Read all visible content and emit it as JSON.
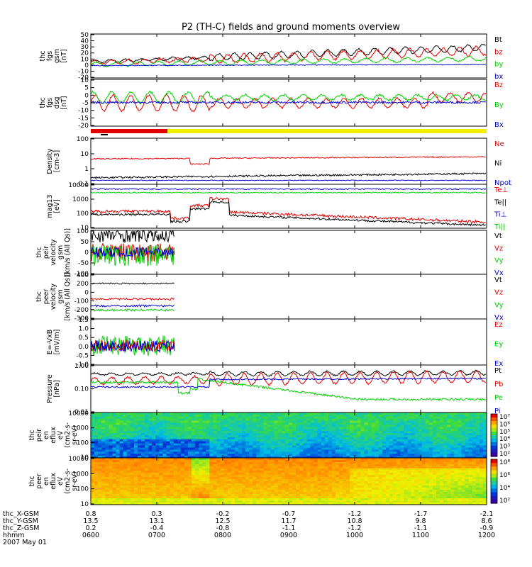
{
  "title": "P2 (TH-C) fields and ground moments overview",
  "colors": {
    "black": "#000000",
    "red": "#e00000",
    "green": "#00d000",
    "blue": "#0000d0",
    "mode_red": "#e00000",
    "mode_yellow": "#f0f000"
  },
  "chart_data": [
    {
      "type": "line",
      "ylabel": [
        "thc",
        "fgs",
        "gsm",
        "[nT]"
      ],
      "yticks": [
        "50",
        "40",
        "30",
        "20",
        "10",
        "0",
        "-10",
        "-20"
      ],
      "ylim": [
        -20,
        50
      ],
      "legend": [
        {
          "label": "Bt",
          "color": "#000000"
        },
        {
          "label": "bz",
          "color": "#e00000"
        },
        {
          "label": "by",
          "color": "#00d000"
        },
        {
          "label": "bx",
          "color": "#0000d0"
        }
      ]
    },
    {
      "type": "line",
      "ylabel": [
        "thc",
        "fgs",
        "dsg",
        "[nT]"
      ],
      "yticks": [
        "10",
        "5",
        "0",
        "-5",
        "-10",
        "-15",
        "-20"
      ],
      "ylim": [
        -20,
        15
      ],
      "legend": [
        {
          "label": "Bz",
          "color": "#e00000"
        },
        {
          "label": "By",
          "color": "#00d000"
        },
        {
          "label": "Bx",
          "color": "#0000d0"
        }
      ]
    },
    {
      "type": "line",
      "ylabel": [
        "Density",
        "[cm-3]"
      ],
      "yticks": [
        "100",
        "10",
        "1",
        "0.1"
      ],
      "scale": "log",
      "ylim": [
        0.1,
        100
      ],
      "legend": [
        {
          "label": "Ne",
          "color": "#e00000"
        },
        {
          "label": "Ni",
          "color": "#000000"
        },
        {
          "label": "Npot",
          "color": "#0000d0"
        }
      ]
    },
    {
      "type": "line",
      "ylabel": [
        "mag13",
        "[eV]"
      ],
      "yticks": [
        "10000",
        "1000",
        "100",
        "10"
      ],
      "scale": "log",
      "ylim": [
        10,
        10000
      ],
      "legend": [
        {
          "label": "Te⊥",
          "color": "#e00000"
        },
        {
          "label": "Te||",
          "color": "#000000"
        },
        {
          "label": "Ti⊥",
          "color": "#0000d0"
        },
        {
          "label": "Ti||",
          "color": "#00d000"
        }
      ]
    },
    {
      "type": "line",
      "ylabel": [
        "thc",
        "peir",
        "velocity",
        "gsm",
        "[km/s (All Qs)]"
      ],
      "yticks": [
        "100",
        "50",
        "0",
        "-50",
        "-100"
      ],
      "ylim": [
        -100,
        100
      ],
      "legend": [
        {
          "label": "Vt",
          "color": "#000000"
        },
        {
          "label": "Vz",
          "color": "#e00000"
        },
        {
          "label": "Vy",
          "color": "#00d000"
        },
        {
          "label": "Vx",
          "color": "#0000d0"
        }
      ]
    },
    {
      "type": "line",
      "ylabel": [
        "thc",
        "peer",
        "velocity",
        "gsm",
        "[km/s (All Qs)]"
      ],
      "yticks": [
        "400",
        "200",
        "0",
        "-100",
        "-200",
        "-300"
      ],
      "ylim": [
        -300,
        400
      ],
      "legend": [
        {
          "label": "Vt",
          "color": "#000000"
        },
        {
          "label": "Vz",
          "color": "#e00000"
        },
        {
          "label": "Vy",
          "color": "#00d000"
        },
        {
          "label": "Vx",
          "color": "#0000d0"
        }
      ]
    },
    {
      "type": "line",
      "ylabel": [
        "E=-VxB",
        "[mV/m]"
      ],
      "yticks": [
        "1.5",
        "1.0",
        "0.5",
        "0.0",
        "-0.5",
        "-1.0"
      ],
      "ylim": [
        -1.0,
        1.5
      ],
      "legend": [
        {
          "label": "Ez",
          "color": "#e00000"
        },
        {
          "label": "Ey",
          "color": "#00d000"
        },
        {
          "label": "Ex",
          "color": "#0000d0"
        }
      ]
    },
    {
      "type": "line",
      "ylabel": [
        "Pressure",
        "[nPa]"
      ],
      "yticks": [
        "1.00",
        "0.10",
        "0.01"
      ],
      "scale": "log",
      "ylim": [
        0.01,
        1.0
      ],
      "legend": [
        {
          "label": "Pt",
          "color": "#000000"
        },
        {
          "label": "Pb",
          "color": "#e00000"
        },
        {
          "label": "Pe",
          "color": "#00d000"
        },
        {
          "label": "Pi",
          "color": "#0000d0"
        }
      ]
    },
    {
      "type": "heatmap",
      "ylabel": [
        "thc",
        "peir",
        "en",
        "eflux",
        "eV",
        "(cm2-s-",
        "sr-eV)"
      ],
      "yticks": [
        "10000",
        "1000",
        "100",
        "10"
      ],
      "scale": "log",
      "ylim": [
        10,
        10000
      ],
      "colorbar": [
        "10⁷",
        "10⁶",
        "10⁵",
        "10⁴",
        "10³",
        "10²"
      ]
    },
    {
      "type": "heatmap",
      "ylabel": [
        "thc",
        "peer",
        "en",
        "eflux",
        "eV",
        "(cm2-s-",
        "sr-eV)"
      ],
      "yticks": [
        "10000",
        "1000",
        "100",
        "10"
      ],
      "scale": "log",
      "ylim": [
        10,
        10000
      ],
      "colorbar": [
        "10⁸",
        "10⁶",
        "10⁴",
        "10²"
      ]
    }
  ],
  "footer": {
    "labels": [
      "thc_X-GSM",
      "thc_Y-GSM",
      "thc_Z-GSM",
      "hhmm",
      "2007 May 01"
    ],
    "rows": [
      [
        "0.8",
        "0.3",
        "-0.2",
        "-0.7",
        "-1.2",
        "-1.7",
        "-2.1"
      ],
      [
        "13.5",
        "13.1",
        "12.5",
        "11.7",
        "10.8",
        "9.8",
        "8.6"
      ],
      [
        "0.2",
        "-0.4",
        "-0.8",
        "-1.1",
        "-1.2",
        "-1.1",
        "-0.9"
      ],
      [
        "0600",
        "0700",
        "0800",
        "0900",
        "1000",
        "1100",
        "1200"
      ]
    ]
  }
}
